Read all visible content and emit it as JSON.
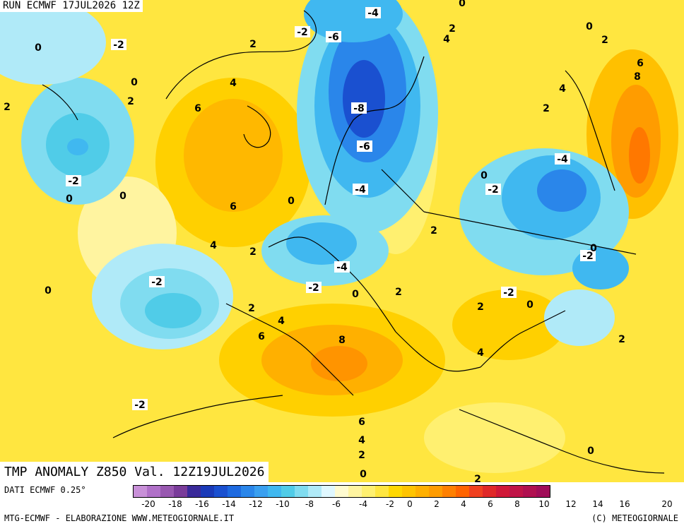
{
  "header": {
    "run": "RUN ECMWF 17JUL2026 12Z"
  },
  "title": "TMP ANOMALY Z850 Val. 12Z19JUL2026",
  "footer": {
    "dati": "DATI ECMWF 0.25°",
    "credit_left": "MTG-ECMWF - ELABORAZIONE WWW.METEOGIORNALE.IT",
    "credit_right": "(C) METEOGIORNALE"
  },
  "legend": {
    "colors": [
      "#c890d8",
      "#b070c8",
      "#9858b0",
      "#7a3c9a",
      "#3a2a9a",
      "#1a3ab8",
      "#1a50d0",
      "#1e6ae0",
      "#2a86ea",
      "#3aa0f0",
      "#40b8f0",
      "#50cce8",
      "#80dcf0",
      "#b0eaf8",
      "#e0f8ff",
      "#fffbd0",
      "#fff4a0",
      "#fff070",
      "#ffe640",
      "#ffd800",
      "#ffc400",
      "#ffb000",
      "#ff9c00",
      "#ff8000",
      "#ff6400",
      "#f04020",
      "#e02828",
      "#d01838",
      "#c01448",
      "#b01050",
      "#a00c58"
    ],
    "ticks": [
      "-20",
      "-18",
      "-16",
      "-14",
      "-12",
      "-10",
      "-8",
      "-6",
      "-4",
      "-2",
      "0",
      "2",
      "4",
      "6",
      "8",
      "10",
      "12",
      "14",
      "16",
      "20"
    ]
  },
  "map_labels": [
    {
      "t": "-4"
    },
    {
      "t": "0"
    },
    {
      "t": "-2"
    },
    {
      "t": "-6"
    },
    {
      "t": "0"
    },
    {
      "t": "2"
    },
    {
      "t": "4"
    },
    {
      "t": "2"
    },
    {
      "t": "-2"
    },
    {
      "t": "0"
    },
    {
      "t": "0"
    },
    {
      "t": "2"
    },
    {
      "t": "6"
    },
    {
      "t": "8"
    },
    {
      "t": "4"
    },
    {
      "t": "2"
    },
    {
      "t": "2"
    },
    {
      "t": "4"
    },
    {
      "t": "2"
    },
    {
      "t": "6"
    },
    {
      "t": "-8"
    },
    {
      "t": "-6"
    },
    {
      "t": "-4"
    },
    {
      "t": "-4"
    },
    {
      "t": "0"
    },
    {
      "t": "-2"
    },
    {
      "t": "0"
    },
    {
      "t": "-2"
    },
    {
      "t": "0"
    },
    {
      "t": "6"
    },
    {
      "t": "0"
    },
    {
      "t": "4"
    },
    {
      "t": "2"
    },
    {
      "t": "2"
    },
    {
      "t": "-4"
    },
    {
      "t": "-2"
    },
    {
      "t": "0"
    },
    {
      "t": "-2"
    },
    {
      "t": "0"
    },
    {
      "t": "-2"
    },
    {
      "t": "2"
    },
    {
      "t": "2"
    },
    {
      "t": "4"
    },
    {
      "t": "6"
    },
    {
      "t": "8"
    },
    {
      "t": "-2"
    },
    {
      "t": "0"
    },
    {
      "t": "0"
    },
    {
      "t": "2"
    },
    {
      "t": "4"
    },
    {
      "t": "2"
    },
    {
      "t": "6"
    },
    {
      "t": "4"
    },
    {
      "t": "2"
    },
    {
      "t": "0"
    },
    {
      "t": "0"
    },
    {
      "t": "2"
    },
    {
      "t": "-2"
    }
  ]
}
